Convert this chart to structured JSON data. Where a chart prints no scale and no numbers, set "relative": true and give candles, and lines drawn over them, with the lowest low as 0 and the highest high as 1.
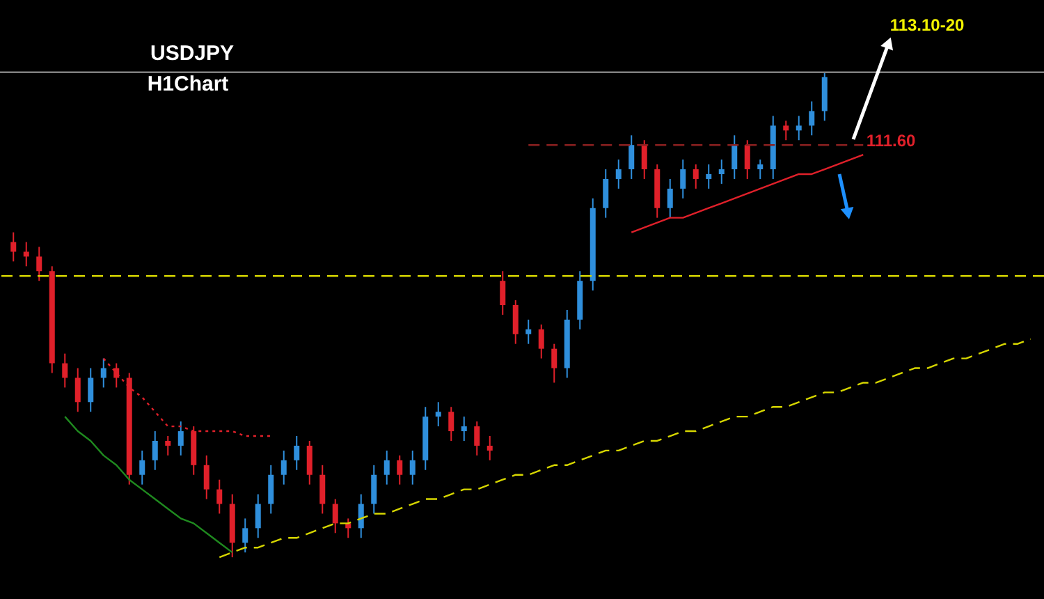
{
  "chart_data": {
    "type": "candlestick",
    "relative": true,
    "categories": [
      null,
      null,
      null,
      null,
      null,
      null,
      null,
      null,
      null,
      null,
      null,
      null,
      null,
      null,
      null,
      null,
      null,
      null,
      null,
      null,
      null,
      null,
      null,
      null,
      null,
      null,
      null,
      null,
      null,
      null,
      null,
      null,
      null,
      null,
      null,
      null,
      null,
      null,
      null,
      null,
      null,
      null,
      null,
      null,
      null,
      null,
      null,
      null,
      null,
      null,
      null,
      null,
      null,
      null,
      null,
      null,
      null,
      null,
      null,
      null,
      null,
      null,
      null,
      null,
      null,
      null,
      null,
      null,
      null,
      null,
      null,
      null,
      null,
      null,
      null,
      null,
      null,
      null,
      null,
      null
    ],
    "ohlc": [
      [
        0.65,
        0.67,
        0.61,
        0.63
      ],
      [
        0.63,
        0.65,
        0.6,
        0.62
      ],
      [
        0.62,
        0.64,
        0.57,
        0.59
      ],
      [
        0.59,
        0.6,
        0.38,
        0.4
      ],
      [
        0.4,
        0.42,
        0.35,
        0.37
      ],
      [
        0.37,
        0.39,
        0.3,
        0.32
      ],
      [
        0.32,
        0.39,
        0.3,
        0.37
      ],
      [
        0.37,
        0.41,
        0.35,
        0.39
      ],
      [
        0.39,
        0.4,
        0.35,
        0.37
      ],
      [
        0.37,
        0.38,
        0.15,
        0.17
      ],
      [
        0.17,
        0.22,
        0.15,
        0.2
      ],
      [
        0.2,
        0.26,
        0.18,
        0.24
      ],
      [
        0.24,
        0.25,
        0.21,
        0.23
      ],
      [
        0.23,
        0.28,
        0.21,
        0.26
      ],
      [
        0.26,
        0.27,
        0.17,
        0.19
      ],
      [
        0.19,
        0.21,
        0.12,
        0.14
      ],
      [
        0.14,
        0.16,
        0.09,
        0.11
      ],
      [
        0.11,
        0.13,
        0,
        0.03
      ],
      [
        0.03,
        0.08,
        0.01,
        0.06
      ],
      [
        0.06,
        0.13,
        0.04,
        0.11
      ],
      [
        0.11,
        0.19,
        0.09,
        0.17
      ],
      [
        0.17,
        0.22,
        0.15,
        0.2
      ],
      [
        0.2,
        0.25,
        0.18,
        0.23
      ],
      [
        0.23,
        0.24,
        0.15,
        0.17
      ],
      [
        0.17,
        0.19,
        0.09,
        0.11
      ],
      [
        0.11,
        0.12,
        0.05,
        0.07
      ],
      [
        0.07,
        0.08,
        0.04,
        0.06
      ],
      [
        0.06,
        0.13,
        0.04,
        0.11
      ],
      [
        0.11,
        0.19,
        0.09,
        0.17
      ],
      [
        0.17,
        0.22,
        0.15,
        0.2
      ],
      [
        0.2,
        0.21,
        0.15,
        0.17
      ],
      [
        0.17,
        0.22,
        0.15,
        0.2
      ],
      [
        0.2,
        0.31,
        0.18,
        0.29
      ],
      [
        0.29,
        0.32,
        0.27,
        0.3
      ],
      [
        0.3,
        0.31,
        0.24,
        0.26
      ],
      [
        0.26,
        0.29,
        0.24,
        0.27
      ],
      [
        0.27,
        0.28,
        0.21,
        0.23
      ],
      [
        0.23,
        0.25,
        0.2,
        0.22
      ],
      [
        0.57,
        0.59,
        0.5,
        0.52
      ],
      [
        0.52,
        0.53,
        0.44,
        0.46
      ],
      [
        0.46,
        0.49,
        0.44,
        0.47
      ],
      [
        0.47,
        0.48,
        0.41,
        0.43
      ],
      [
        0.43,
        0.44,
        0.36,
        0.39
      ],
      [
        0.39,
        0.51,
        0.37,
        0.49
      ],
      [
        0.49,
        0.59,
        0.47,
        0.57
      ],
      [
        0.57,
        0.74,
        0.55,
        0.72
      ],
      [
        0.72,
        0.8,
        0.7,
        0.78
      ],
      [
        0.78,
        0.82,
        0.76,
        0.8
      ],
      [
        0.8,
        0.87,
        0.78,
        0.85
      ],
      [
        0.85,
        0.86,
        0.78,
        0.8
      ],
      [
        0.8,
        0.81,
        0.7,
        0.72
      ],
      [
        0.72,
        0.78,
        0.7,
        0.76
      ],
      [
        0.76,
        0.82,
        0.74,
        0.8
      ],
      [
        0.8,
        0.81,
        0.76,
        0.78
      ],
      [
        0.78,
        0.81,
        0.76,
        0.79
      ],
      [
        0.79,
        0.82,
        0.77,
        0.8
      ],
      [
        0.8,
        0.87,
        0.78,
        0.85
      ],
      [
        0.85,
        0.86,
        0.78,
        0.8
      ],
      [
        0.8,
        0.82,
        0.78,
        0.81
      ],
      [
        0.8,
        0.91,
        0.78,
        0.89
      ],
      [
        0.89,
        0.9,
        0.86,
        0.88
      ],
      [
        0.88,
        0.91,
        0.86,
        0.89
      ],
      [
        0.89,
        0.94,
        0.87,
        0.92
      ],
      [
        0.92,
        1,
        0.9,
        0.99
      ],
      null,
      null,
      null,
      null,
      null,
      null,
      null,
      null,
      null,
      null,
      null,
      null,
      null,
      null,
      null,
      null
    ],
    "colors": [
      "#e0202a",
      "#e0202a",
      "#e0202a",
      "#e0202a",
      "#e0202a",
      "#e0202a",
      "#2f8fdc",
      "#2f8fdc",
      "#e0202a",
      "#e0202a",
      "#2f8fdc",
      "#2f8fdc",
      "#e0202a",
      "#2f8fdc",
      "#e0202a",
      "#e0202a",
      "#e0202a",
      "#e0202a",
      "#2f8fdc",
      "#2f8fdc",
      "#2f8fdc",
      "#2f8fdc",
      "#2f8fdc",
      "#e0202a",
      "#e0202a",
      "#e0202a",
      "#e0202a",
      "#2f8fdc",
      "#2f8fdc",
      "#2f8fdc",
      "#e0202a",
      "#2f8fdc",
      "#2f8fdc",
      "#2f8fdc",
      "#e0202a",
      "#2f8fdc",
      "#e0202a",
      "#e0202a",
      "#e0202a",
      "#e0202a",
      "#2f8fdc",
      "#e0202a",
      "#e0202a",
      "#2f8fdc",
      "#2f8fdc",
      "#2f8fdc",
      "#2f8fdc",
      "#2f8fdc",
      "#2f8fdc",
      "#e0202a",
      "#e0202a",
      "#2f8fdc",
      "#2f8fdc",
      "#e0202a",
      "#2f8fdc",
      "#2f8fdc",
      "#2f8fdc",
      "#e0202a",
      "#2f8fdc",
      "#2f8fdc",
      "#e0202a",
      "#2f8fdc",
      "#2f8fdc",
      "#2f8fdc",
      null,
      null,
      null,
      null,
      null,
      null,
      null,
      null,
      null,
      null,
      null,
      null,
      null,
      null,
      null,
      null
    ],
    "series": [
      {
        "type": "line",
        "color": "#d6d600",
        "line_style": "dashed",
        "values": [
          null,
          null,
          null,
          null,
          null,
          null,
          null,
          null,
          null,
          null,
          null,
          null,
          null,
          null,
          null,
          null,
          0.0,
          0.01,
          0.02,
          0.02,
          0.03,
          0.04,
          0.04,
          0.05,
          0.06,
          0.07,
          0.07,
          0.08,
          0.09,
          0.09,
          0.1,
          0.11,
          0.12,
          0.12,
          0.13,
          0.14,
          0.14,
          0.15,
          0.16,
          0.17,
          0.17,
          0.18,
          0.19,
          0.19,
          0.2,
          0.21,
          0.22,
          0.22,
          0.23,
          0.24,
          0.24,
          0.25,
          0.26,
          0.26,
          0.27,
          0.28,
          0.29,
          0.29,
          0.3,
          0.31,
          0.31,
          0.32,
          0.33,
          0.34,
          0.34,
          0.35,
          0.36,
          0.36,
          0.37,
          0.38,
          0.39,
          0.39,
          0.4,
          0.41,
          0.41,
          0.42,
          0.43,
          0.44,
          0.44,
          0.45
        ]
      },
      {
        "type": "line",
        "color": "#8b2020",
        "line_style": "dashed",
        "values": [
          null,
          null,
          null,
          null,
          null,
          null,
          null,
          null,
          null,
          null,
          null,
          null,
          null,
          null,
          null,
          null,
          null,
          null,
          null,
          null,
          null,
          null,
          null,
          null,
          null,
          null,
          null,
          null,
          null,
          null,
          null,
          null,
          null,
          null,
          null,
          null,
          null,
          null,
          null,
          null,
          0.85,
          0.85,
          0.85,
          0.85,
          0.85,
          0.85,
          0.85,
          0.85,
          0.85,
          0.85,
          0.85,
          0.85,
          0.85,
          0.85,
          0.85,
          0.85,
          0.85,
          0.85,
          0.85,
          0.85,
          0.85,
          0.85,
          0.85,
          0.85,
          0.85,
          0.85,
          0.85,
          null,
          null,
          null,
          null,
          null,
          null,
          null,
          null,
          null,
          null,
          null,
          null,
          null
        ]
      },
      {
        "type": "line",
        "color": "#e0202a",
        "line_style": "solid",
        "values": [
          null,
          null,
          null,
          null,
          null,
          null,
          null,
          null,
          null,
          null,
          null,
          null,
          null,
          null,
          null,
          null,
          null,
          null,
          null,
          null,
          null,
          null,
          null,
          null,
          null,
          null,
          null,
          null,
          null,
          null,
          null,
          null,
          null,
          null,
          null,
          null,
          null,
          null,
          null,
          null,
          null,
          null,
          null,
          null,
          null,
          null,
          null,
          null,
          0.67,
          0.68,
          0.69,
          0.7,
          0.7,
          0.71,
          0.72,
          0.73,
          0.74,
          0.75,
          0.76,
          0.77,
          0.78,
          0.79,
          0.79,
          0.8,
          0.81,
          0.82,
          0.83,
          null,
          null,
          null,
          null,
          null,
          null,
          null,
          null,
          null,
          null,
          null,
          null,
          null
        ]
      },
      {
        "type": "line",
        "color": "#1f8a1f",
        "line_style": "solid",
        "values": [
          null,
          null,
          null,
          null,
          0.29,
          0.26,
          0.24,
          0.21,
          0.19,
          0.16,
          0.14,
          0.12,
          0.1,
          0.08,
          0.07,
          0.05,
          0.03,
          0.01,
          null,
          null,
          null,
          null,
          null,
          null,
          null,
          null,
          null,
          null,
          null,
          null,
          null,
          null,
          null,
          null,
          null,
          null,
          null,
          null,
          null,
          null,
          null,
          null,
          null,
          null,
          null,
          null,
          null,
          null,
          null,
          null,
          null,
          null,
          null,
          null,
          null,
          null,
          null,
          null,
          null,
          null,
          null,
          null,
          null,
          null,
          null,
          null,
          null,
          null,
          null,
          null,
          null,
          null,
          null,
          null,
          null,
          null,
          null,
          null,
          null,
          null
        ]
      },
      {
        "type": "line",
        "color": "#e0202a",
        "line_style": "dotted",
        "values": [
          null,
          null,
          null,
          null,
          null,
          null,
          null,
          0.41,
          0.38,
          0.35,
          0.33,
          0.3,
          0.27,
          0.27,
          0.26,
          0.26,
          0.26,
          0.26,
          0.25,
          0.25,
          0.25,
          null,
          null,
          null,
          null,
          null,
          null,
          null,
          null,
          null,
          null,
          null,
          null,
          null,
          null,
          null,
          null,
          null,
          null,
          null,
          null,
          null,
          null,
          null,
          null,
          null,
          null,
          null,
          null,
          null,
          null,
          null,
          null,
          null,
          null,
          null,
          null,
          null,
          null,
          null,
          null,
          null,
          null,
          null,
          null,
          null,
          null,
          null,
          null,
          null,
          null,
          null,
          null,
          null,
          null,
          null,
          null,
          null,
          null,
          null
        ]
      }
    ],
    "ref_lines": [
      {
        "axis": "y",
        "value": 0.58,
        "color": "#d6d600",
        "line_style": "dashed"
      },
      {
        "axis": "y",
        "value": 1,
        "color": "#808080",
        "line_style": "solid"
      }
    ],
    "annotations": [
      "USDJPY",
      "H1Chart",
      "113.10-20",
      "111.60"
    ]
  }
}
